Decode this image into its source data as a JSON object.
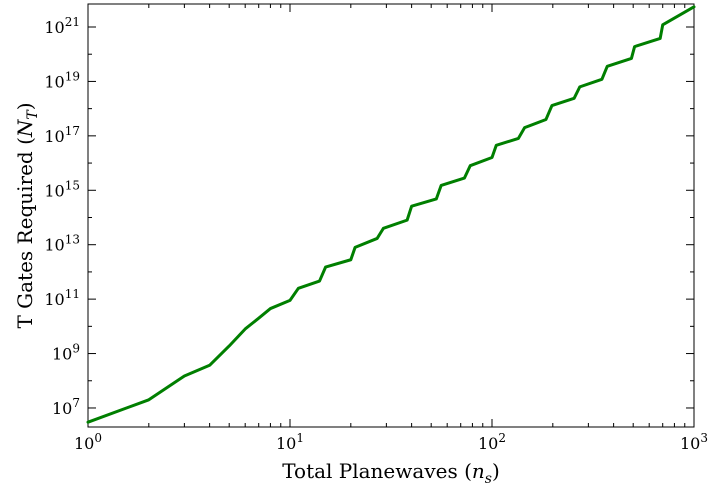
{
  "chart_data": {
    "type": "line",
    "xlabel": {
      "text": "Total Planewaves (",
      "math": "n",
      "math_sub": "s",
      "suffix": ")"
    },
    "ylabel": {
      "text": "T Gates Required (",
      "math": "N",
      "math_sub": "T",
      "suffix": ")"
    },
    "x_scale": "log",
    "y_scale": "log",
    "xlim": [
      1,
      1000
    ],
    "ylim": [
      2000000.0,
      7e+21
    ],
    "x_ticks": [
      {
        "base": "10",
        "exp": "0",
        "value": 1
      },
      {
        "base": "10",
        "exp": "1",
        "value": 10
      },
      {
        "base": "10",
        "exp": "2",
        "value": 100
      },
      {
        "base": "10",
        "exp": "3",
        "value": 1000
      }
    ],
    "y_ticks": [
      {
        "base": "10",
        "exp": "7",
        "value": 10000000.0
      },
      {
        "base": "10",
        "exp": "9",
        "value": 1000000000.0
      },
      {
        "base": "10",
        "exp": "11",
        "value": 100000000000.0
      },
      {
        "base": "10",
        "exp": "13",
        "value": 10000000000000.0
      },
      {
        "base": "10",
        "exp": "15",
        "value": 1000000000000000.0
      },
      {
        "base": "10",
        "exp": "17",
        "value": 1e+17
      },
      {
        "base": "10",
        "exp": "19",
        "value": 1e+19
      },
      {
        "base": "10",
        "exp": "21",
        "value": 1e+21
      }
    ],
    "grid": false,
    "line_color": "#007f00",
    "series": [
      {
        "x": [
          1,
          2,
          3,
          4,
          5,
          6,
          7,
          8,
          10,
          11,
          14,
          15,
          20,
          21,
          27,
          29,
          38,
          40,
          53,
          56,
          73,
          78,
          100,
          105,
          135,
          145,
          185,
          198,
          255,
          272,
          350,
          372,
          490,
          508,
          680,
          700,
          1000
        ],
        "y": [
          3000000.0,
          20000000.0,
          150000000.0,
          370000000.0,
          1900000000.0,
          8000000000.0,
          20000000000.0,
          45000000000.0,
          90000000000.0,
          250000000000.0,
          460000000000.0,
          1500000000000.0,
          2800000000000.0,
          8000000000000.0,
          17000000000000.0,
          40000000000000.0,
          80000000000000.0,
          260000000000000.0,
          480000000000000.0,
          1500000000000000.0,
          2800000000000000.0,
          8000000000000000.0,
          1.6e+16,
          4.5e+16,
          8e+16,
          2e+17,
          4e+17,
          1.3e+18,
          2.4e+18,
          6.3e+18,
          1.2e+19,
          3.6e+19,
          7e+19,
          1.9e+20,
          3.8e+20,
          1.2e+21,
          5.5e+21
        ]
      }
    ]
  }
}
